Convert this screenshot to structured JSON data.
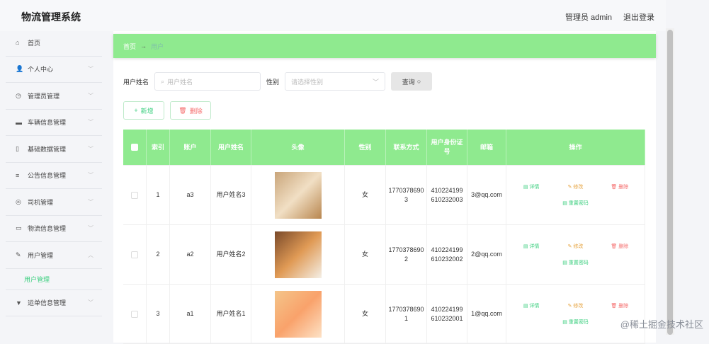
{
  "header": {
    "title": "物流管理系统",
    "user": "管理员 admin",
    "logout": "退出登录"
  },
  "sidebar": {
    "items": [
      {
        "icon": "home-icon",
        "glyph": "⌂",
        "label": "首页",
        "chev": ""
      },
      {
        "icon": "user-icon",
        "glyph": "👤",
        "label": "个人中心",
        "chev": "﹀"
      },
      {
        "icon": "clock-icon",
        "glyph": "◷",
        "label": "管理员管理",
        "chev": "﹀"
      },
      {
        "icon": "monitor-icon",
        "glyph": "▬",
        "label": "车辆信息管理",
        "chev": "﹀"
      },
      {
        "icon": "phone-icon",
        "glyph": "▯",
        "label": "基础数据管理",
        "chev": "﹀"
      },
      {
        "icon": "list-icon",
        "glyph": "≡",
        "label": "公告信息管理",
        "chev": "﹀"
      },
      {
        "icon": "badge-icon",
        "glyph": "◎",
        "label": "司机管理",
        "chev": "﹀"
      },
      {
        "icon": "message-icon",
        "glyph": "▭",
        "label": "物流信息管理",
        "chev": "﹀"
      },
      {
        "icon": "edit-icon",
        "glyph": "✎",
        "label": "用户管理",
        "chev": "︿"
      }
    ],
    "sub": "用户管理",
    "last": {
      "icon": "truck-icon",
      "glyph": "▼",
      "label": "运单信息管理",
      "chev": "﹀"
    }
  },
  "breadcrumb": {
    "home": "首页",
    "arrow": "→",
    "current": "用户"
  },
  "search": {
    "name_label": "用户姓名",
    "name_placeholder": "用户姓名",
    "gender_label": "性别",
    "gender_placeholder": "请选择性别",
    "query": "查询"
  },
  "actions": {
    "add": "新增",
    "delete": "删除"
  },
  "table": {
    "headers": [
      "索引",
      "账户",
      "用户姓名",
      "头像",
      "性别",
      "联系方式",
      "用户身份证号",
      "邮箱",
      "操作"
    ],
    "rows": [
      {
        "index": "1",
        "account": "a3",
        "name": "用户姓名3",
        "gender": "女",
        "phone": "17703786903",
        "id": "410224199610232003",
        "email": "3@qq.com"
      },
      {
        "index": "2",
        "account": "a2",
        "name": "用户姓名2",
        "gender": "女",
        "phone": "17703786902",
        "id": "410224199610232002",
        "email": "2@qq.com"
      },
      {
        "index": "3",
        "account": "a1",
        "name": "用户姓名1",
        "gender": "女",
        "phone": "17703786901",
        "id": "410224199610232001",
        "email": "1@qq.com"
      }
    ],
    "ops": {
      "detail": "详情",
      "edit": "修改",
      "delete": "删除",
      "reset": "重置密码"
    }
  },
  "colors": {
    "accent": "#8fea8f",
    "danger": "#f56c6c",
    "warn": "#e6a23c",
    "link": "#3ccf7f"
  },
  "watermark": "@稀土掘金技术社区"
}
